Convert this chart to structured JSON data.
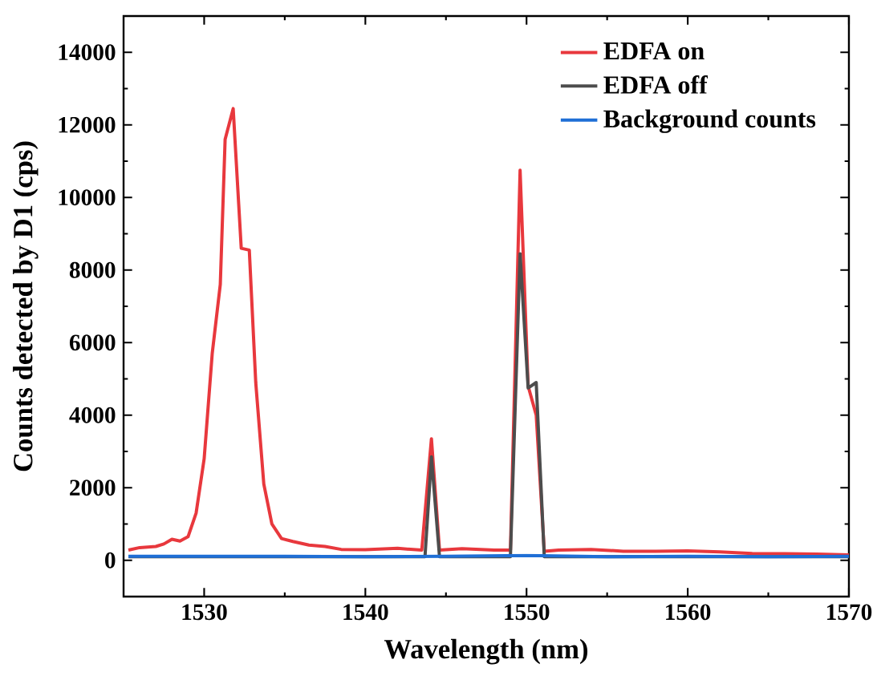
{
  "chart_data": {
    "type": "line",
    "xlabel": "Wavelength (nm)",
    "ylabel": "Counts detected by D1 (cps)",
    "xlim": [
      1525,
      1570
    ],
    "ylim": [
      -1000,
      15000
    ],
    "xticks": [
      1530,
      1540,
      1550,
      1560,
      1570
    ],
    "yticks": [
      0,
      2000,
      4000,
      6000,
      8000,
      10000,
      12000,
      14000
    ],
    "legend": "top right",
    "grid": false,
    "marker": "none",
    "line_style": "solid",
    "series": [
      {
        "name": "EDFA on",
        "color": "#e8383d",
        "x": [
          1525.3,
          1526,
          1527,
          1527.5,
          1528,
          1528.5,
          1529,
          1529.5,
          1530,
          1530.5,
          1531,
          1531.3,
          1531.8,
          1532.3,
          1532.8,
          1533.2,
          1533.7,
          1534.2,
          1534.8,
          1535.5,
          1536.5,
          1537.5,
          1538.5,
          1540,
          1542,
          1543.5,
          1544.1,
          1544.6,
          1546,
          1548,
          1549,
          1549.6,
          1550.1,
          1550.6,
          1551.1,
          1552,
          1554,
          1556,
          1558,
          1560,
          1562,
          1564,
          1566,
          1568,
          1570
        ],
        "values": [
          280,
          350,
          380,
          450,
          580,
          530,
          650,
          1300,
          2800,
          5700,
          7600,
          11600,
          12450,
          8600,
          8550,
          4900,
          2100,
          1000,
          600,
          520,
          420,
          380,
          300,
          290,
          330,
          280,
          3350,
          280,
          320,
          280,
          280,
          10750,
          4800,
          4000,
          250,
          280,
          300,
          250,
          250,
          260,
          230,
          190,
          180,
          170,
          150
        ]
      },
      {
        "name": "EDFA off",
        "color": "#4d4d4d",
        "x": [
          1525.3,
          1543.7,
          1544.1,
          1544.6,
          1549,
          1549.6,
          1550.1,
          1550.6,
          1551.1,
          1570
        ],
        "values": [
          100,
          100,
          2850,
          100,
          100,
          8450,
          4750,
          4900,
          100,
          100
        ]
      },
      {
        "name": "Background counts",
        "color": "#1f6fd6",
        "x": [
          1525.3,
          1530,
          1535,
          1540,
          1545,
          1550,
          1555,
          1560,
          1565,
          1570
        ],
        "values": [
          110,
          110,
          110,
          100,
          110,
          130,
          100,
          110,
          100,
          110
        ]
      }
    ]
  }
}
